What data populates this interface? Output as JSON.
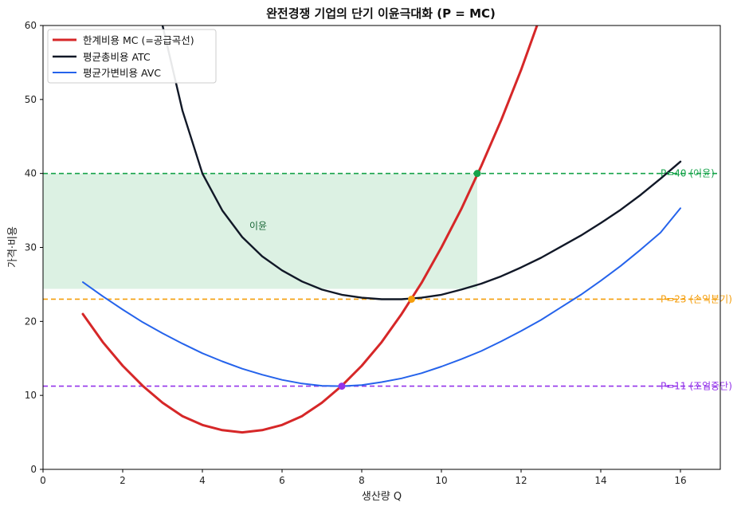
{
  "chart_data": {
    "type": "line",
    "title": "완전경쟁 기업의 단기 이윤극대화 (P = MC)",
    "xlabel": "생산량 Q",
    "ylabel": "가격·비용",
    "xlim": [
      0,
      17
    ],
    "ylim": [
      0,
      60
    ],
    "x_ticks": [
      0,
      2,
      4,
      6,
      8,
      10,
      12,
      14,
      16
    ],
    "y_ticks": [
      0,
      10,
      20,
      30,
      40,
      50,
      60
    ],
    "grid": false,
    "legend_position": "top-left",
    "series": [
      {
        "name": "한계비용 MC (=공급곡선)",
        "color": "#d62728",
        "x": [
          1,
          1.5,
          2,
          2.5,
          3,
          3.5,
          4,
          4.5,
          5,
          5.5,
          6,
          6.5,
          7,
          7.5,
          8,
          8.5,
          9,
          9.5,
          10,
          10.5,
          11,
          11.5,
          12,
          12.4
        ],
        "y": [
          21.0,
          17.2,
          14.0,
          11.3,
          9.0,
          7.2,
          6.0,
          5.3,
          5.0,
          5.3,
          6.0,
          7.2,
          9.0,
          11.3,
          14.0,
          17.2,
          21.0,
          25.2,
          30.0,
          35.2,
          41.0,
          47.2,
          54.0,
          60.0
        ]
      },
      {
        "name": "평균총비용 ATC",
        "color": "#111827",
        "x": [
          3.0,
          3.5,
          4,
          4.5,
          5,
          5.5,
          6,
          6.5,
          7,
          7.5,
          8,
          8.5,
          9,
          9.5,
          10,
          10.5,
          11,
          11.5,
          12,
          12.5,
          13,
          13.5,
          14,
          14.5,
          15,
          15.5,
          16
        ],
        "y": [
          60.0,
          48.5,
          40.0,
          35.0,
          31.4,
          28.8,
          26.9,
          25.4,
          24.3,
          23.6,
          23.2,
          23.0,
          23.0,
          23.2,
          23.6,
          24.3,
          25.1,
          26.1,
          27.3,
          28.6,
          30.1,
          31.6,
          33.3,
          35.1,
          37.1,
          39.3,
          41.6
        ]
      },
      {
        "name": "평균가변비용 AVC",
        "color": "#2563eb",
        "x": [
          1,
          1.5,
          2,
          2.5,
          3,
          3.5,
          4,
          4.5,
          5,
          5.5,
          6,
          6.5,
          7,
          7.5,
          8,
          8.5,
          9,
          9.5,
          10,
          10.5,
          11,
          11.5,
          12,
          12.5,
          13,
          13.5,
          14,
          14.5,
          15,
          15.5,
          16
        ],
        "y": [
          25.3,
          23.4,
          21.6,
          19.9,
          18.4,
          17.0,
          15.7,
          14.6,
          13.6,
          12.8,
          12.1,
          11.6,
          11.3,
          11.25,
          11.4,
          11.8,
          12.3,
          13.0,
          13.9,
          14.9,
          16.0,
          17.3,
          18.7,
          20.2,
          21.9,
          23.6,
          25.5,
          27.5,
          29.7,
          32.0,
          35.3
        ]
      }
    ],
    "price_lines": [
      {
        "y": 40,
        "label": "P=40 (이윤)",
        "color": "#16a34a"
      },
      {
        "y": 23,
        "label": "P=23 (손익분기)",
        "color": "#f59e0b"
      },
      {
        "y": 11.25,
        "label": "P=11 (조업중단)",
        "color": "#9333ea"
      }
    ],
    "profit_area": {
      "x_from": 0,
      "x_to": 10.9,
      "y_from": 24.4,
      "y_to": 40,
      "label": "이윤",
      "label_x": 5.4,
      "label_y": 32.5,
      "color": "#a7dcb8"
    },
    "points": [
      {
        "x": 10.9,
        "y": 40,
        "color": "#16a34a"
      },
      {
        "x": 9.25,
        "y": 23,
        "color": "#f59e0b"
      },
      {
        "x": 7.5,
        "y": 11.25,
        "color": "#9333ea"
      }
    ]
  }
}
